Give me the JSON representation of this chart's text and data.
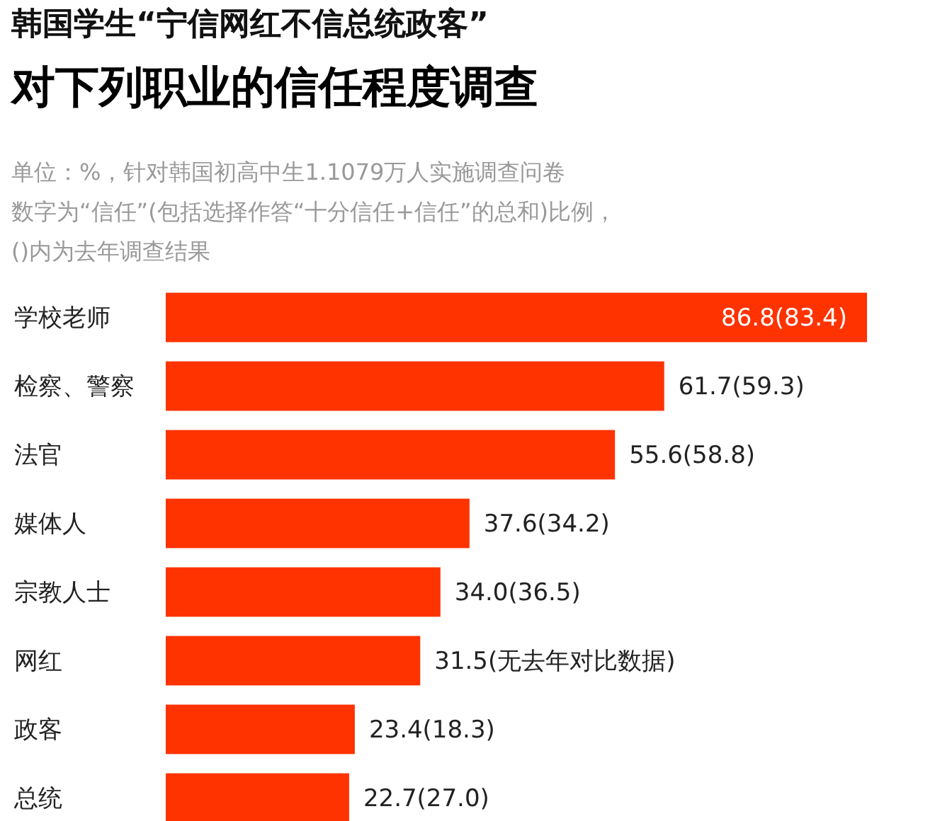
{
  "chart_data": {
    "type": "bar",
    "orientation": "horizontal",
    "title": "韩国学生“宁信网红不信总统政客”",
    "subtitle": "对下列职业的信任程度调查",
    "annotations": [
      "单位：%，针对韩国初高中生1.1079万人实施调查问卷",
      "数字为“信任”(包括选择作答“十分信任+信任”的总和)比例，",
      "()内为去年调查结果"
    ],
    "categories": [
      "学校老师",
      "检察、警察",
      "法官",
      "媒体人",
      "宗教人士",
      "网红",
      "政客",
      "总统"
    ],
    "values": [
      86.8,
      61.7,
      55.6,
      37.6,
      34.0,
      31.5,
      23.4,
      22.7
    ],
    "value_labels": [
      "86.8(83.4)",
      "61.7(59.3)",
      "55.6(58.8)",
      "37.6(34.2)",
      "34.0(36.5)",
      "31.5(无去年对比数据)",
      "23.4(18.3)",
      "22.7(27.0)"
    ],
    "color": "#ff3300"
  }
}
